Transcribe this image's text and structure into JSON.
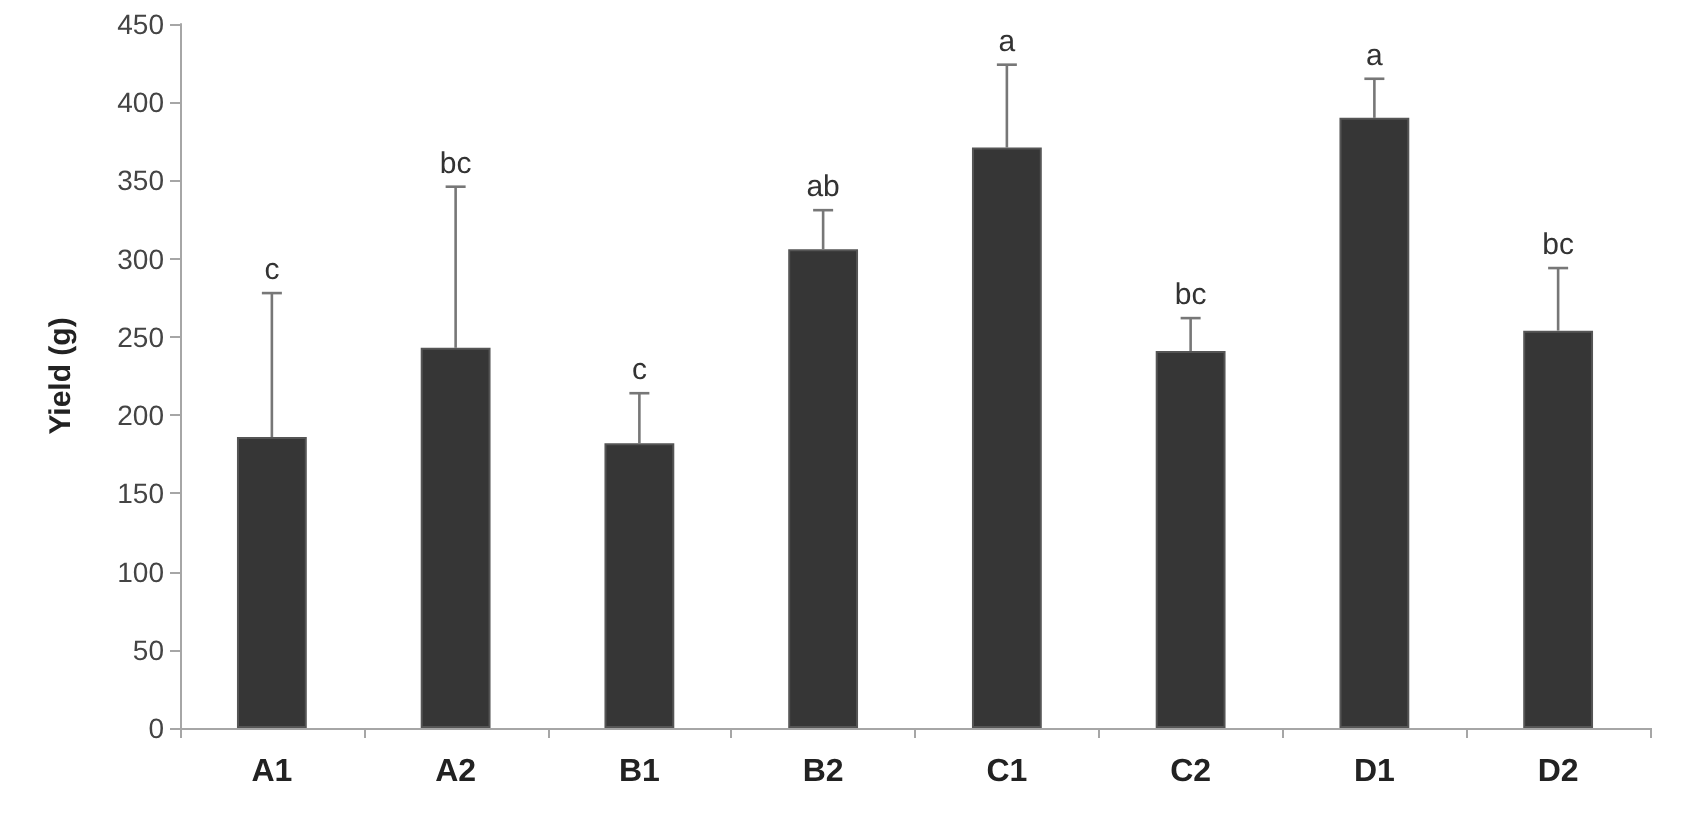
{
  "chart_data": {
    "type": "bar",
    "ylabel": "Yield (g)",
    "categories": [
      "A1",
      "A2",
      "B1",
      "B2",
      "C1",
      "C2",
      "D1",
      "D2"
    ],
    "values": [
      186,
      243,
      182,
      306,
      371,
      241,
      390,
      254
    ],
    "errors": [
      [
        186,
        278
      ],
      [
        243,
        346
      ],
      [
        182,
        214
      ],
      [
        306,
        331
      ],
      [
        371,
        424
      ],
      [
        241,
        262
      ],
      [
        390,
        415
      ],
      [
        254,
        294
      ]
    ],
    "color": "#363636",
    "ylim": [
      0,
      450
    ],
    "yticks": [
      0,
      50,
      100,
      150,
      200,
      250,
      300,
      350,
      400,
      450
    ],
    "grid": false,
    "annotations": [
      {
        "text": "c",
        "x": "A1",
        "y": 278
      },
      {
        "text": "bc",
        "x": "A2",
        "y": 346
      },
      {
        "text": "c",
        "x": "B1",
        "y": 214
      },
      {
        "text": "ab",
        "x": "B2",
        "y": 331
      },
      {
        "text": "a",
        "x": "C1",
        "y": 424
      },
      {
        "text": "bc",
        "x": "C2",
        "y": 262
      },
      {
        "text": "a",
        "x": "D1",
        "y": 415
      },
      {
        "text": "bc",
        "x": "D2",
        "y": 294
      }
    ]
  }
}
